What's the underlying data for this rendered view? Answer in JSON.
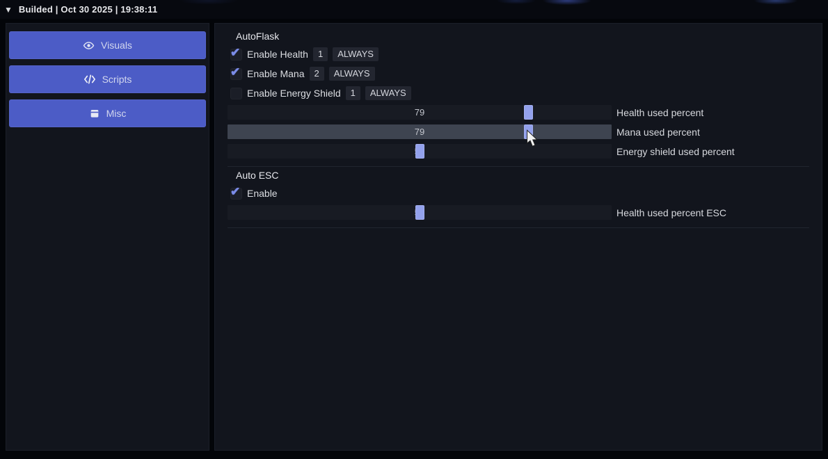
{
  "topbar": {
    "collapse_icon": "▼",
    "title": "Builded | Oct 30 2025 | 19:38:11"
  },
  "sidebar": {
    "buttons": [
      {
        "label": "Visuals",
        "icon": "eye-icon"
      },
      {
        "label": "Scripts",
        "icon": "code-icon"
      },
      {
        "label": "Misc",
        "icon": "box-icon"
      }
    ]
  },
  "sections": [
    {
      "title": "AutoFlask",
      "toggles": [
        {
          "label": "Enable Health",
          "checked": true,
          "hotkey": "1",
          "mode": "ALWAYS"
        },
        {
          "label": "Enable Mana",
          "checked": true,
          "hotkey": "2",
          "mode": "ALWAYS"
        },
        {
          "label": "Enable Energy Shield",
          "checked": false,
          "hotkey": "1",
          "mode": "ALWAYS"
        }
      ],
      "sliders": [
        {
          "label": "Health used percent",
          "value": 79,
          "hovered": false
        },
        {
          "label": "Mana used percent",
          "value": 79,
          "hovered": true
        },
        {
          "label": "Energy shield used percent",
          "value": 50,
          "hovered": false
        }
      ]
    },
    {
      "title": "Auto ESC",
      "toggles": [
        {
          "label": "Enable",
          "checked": true
        }
      ],
      "sliders": [
        {
          "label": "Health used percent ESC",
          "value": 50,
          "hovered": false
        }
      ]
    }
  ],
  "cursor": {
    "shape": "arrow-pointer"
  },
  "colors": {
    "accent_button": "#4c5cc6",
    "slider_handle": "#93a1ec",
    "checkmark": "#7b8ce8",
    "panel_bg": "#12151d",
    "track_bg": "#181b23",
    "track_hover": "#3e4450",
    "badge_bg": "#232630"
  }
}
